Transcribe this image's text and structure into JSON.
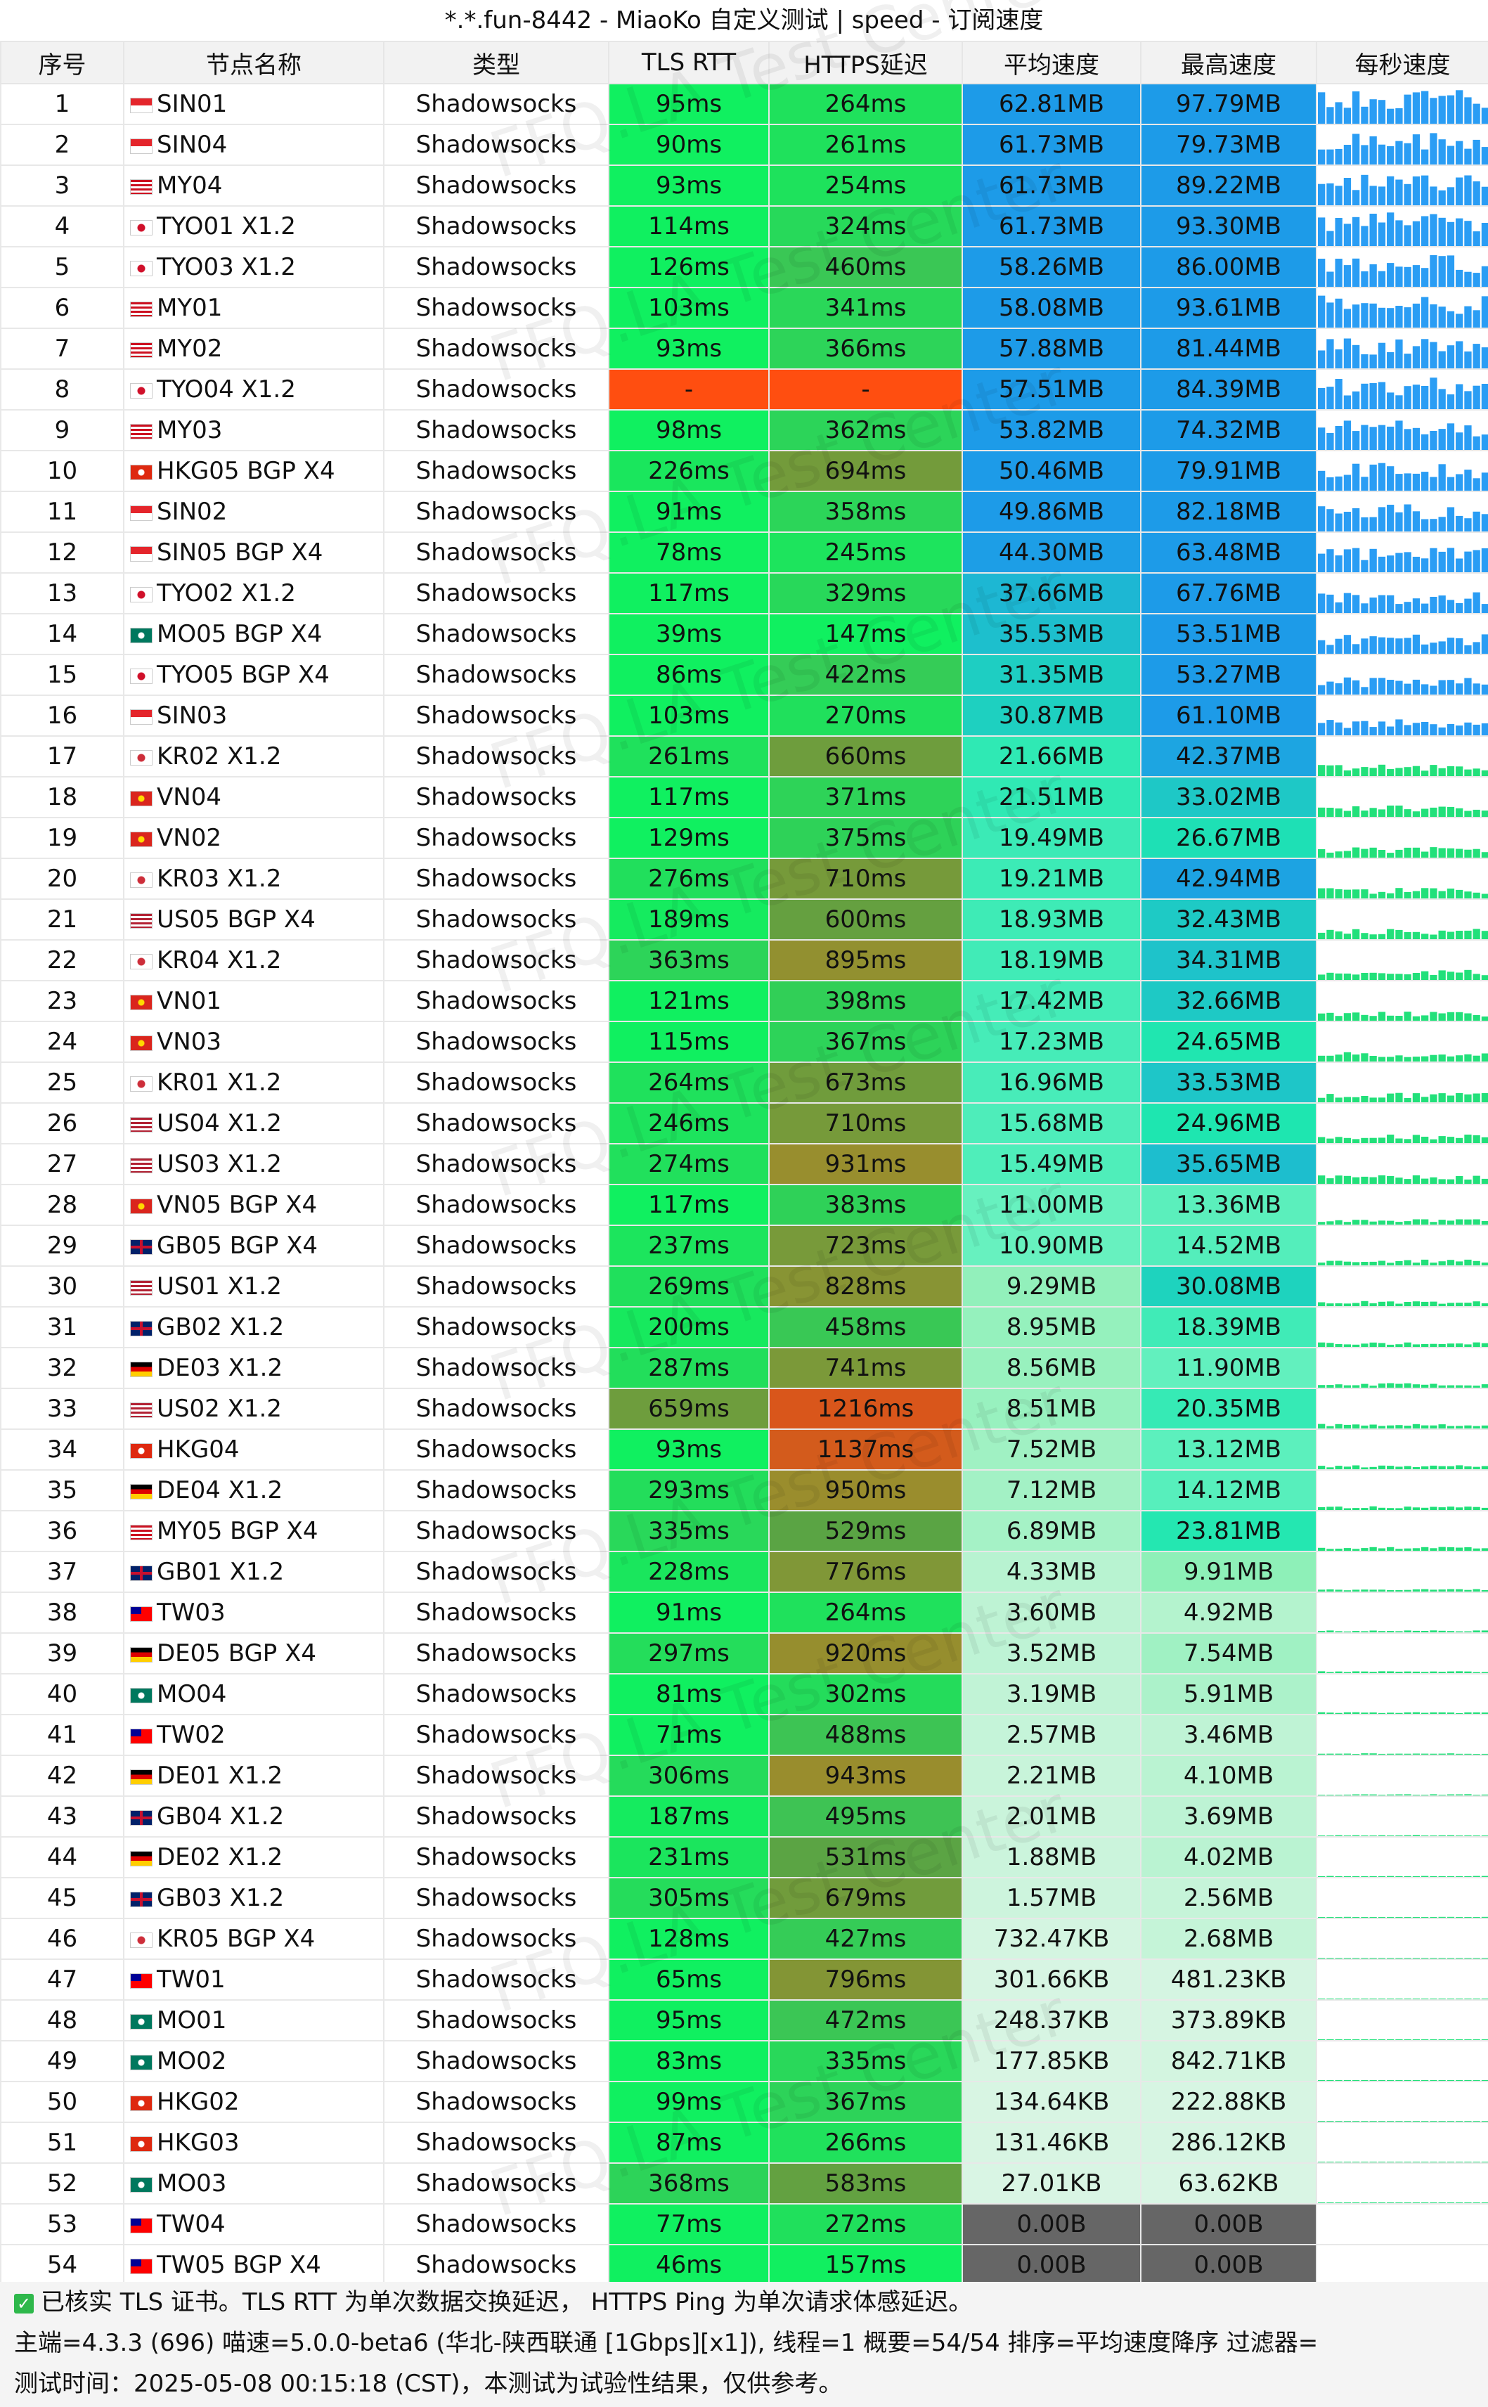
{
  "title": "*.*.fun-8442 - MiaoKo 自定义测试 | speed - 订阅速度",
  "headers": [
    "序号",
    "节点名称",
    "类型",
    "TLS RTT",
    "HTTPS延迟",
    "平均速度",
    "最高速度",
    "每秒速度"
  ],
  "watermark": "FFQ.LA Test Center",
  "rows": [
    {
      "idx": "1",
      "flag": "SG",
      "name": "SIN01",
      "type": "Shadowsocks",
      "tls": "95ms",
      "https": "264ms",
      "avg": "62.81MB",
      "max": "97.79MB"
    },
    {
      "idx": "2",
      "flag": "SG",
      "name": "SIN04",
      "type": "Shadowsocks",
      "tls": "90ms",
      "https": "261ms",
      "avg": "61.73MB",
      "max": "79.73MB"
    },
    {
      "idx": "3",
      "flag": "MY",
      "name": "MY04",
      "type": "Shadowsocks",
      "tls": "93ms",
      "https": "254ms",
      "avg": "61.73MB",
      "max": "89.22MB"
    },
    {
      "idx": "4",
      "flag": "JP",
      "name": "TYO01 X1.2",
      "type": "Shadowsocks",
      "tls": "114ms",
      "https": "324ms",
      "avg": "61.73MB",
      "max": "93.30MB"
    },
    {
      "idx": "5",
      "flag": "JP",
      "name": "TYO03 X1.2",
      "type": "Shadowsocks",
      "tls": "126ms",
      "https": "460ms",
      "avg": "58.26MB",
      "max": "86.00MB"
    },
    {
      "idx": "6",
      "flag": "MY",
      "name": "MY01",
      "type": "Shadowsocks",
      "tls": "103ms",
      "https": "341ms",
      "avg": "58.08MB",
      "max": "93.61MB"
    },
    {
      "idx": "7",
      "flag": "MY",
      "name": "MY02",
      "type": "Shadowsocks",
      "tls": "93ms",
      "https": "366ms",
      "avg": "57.88MB",
      "max": "81.44MB"
    },
    {
      "idx": "8",
      "flag": "JP",
      "name": "TYO04 X1.2",
      "type": "Shadowsocks",
      "tls": "-",
      "https": "-",
      "avg": "57.51MB",
      "max": "84.39MB"
    },
    {
      "idx": "9",
      "flag": "MY",
      "name": "MY03",
      "type": "Shadowsocks",
      "tls": "98ms",
      "https": "362ms",
      "avg": "53.82MB",
      "max": "74.32MB"
    },
    {
      "idx": "10",
      "flag": "HK",
      "name": "HKG05 BGP X4",
      "type": "Shadowsocks",
      "tls": "226ms",
      "https": "694ms",
      "avg": "50.46MB",
      "max": "79.91MB"
    },
    {
      "idx": "11",
      "flag": "SG",
      "name": "SIN02",
      "type": "Shadowsocks",
      "tls": "91ms",
      "https": "358ms",
      "avg": "49.86MB",
      "max": "82.18MB"
    },
    {
      "idx": "12",
      "flag": "SG",
      "name": "SIN05 BGP X4",
      "type": "Shadowsocks",
      "tls": "78ms",
      "https": "245ms",
      "avg": "44.30MB",
      "max": "63.48MB"
    },
    {
      "idx": "13",
      "flag": "JP",
      "name": "TYO02 X1.2",
      "type": "Shadowsocks",
      "tls": "117ms",
      "https": "329ms",
      "avg": "37.66MB",
      "max": "67.76MB"
    },
    {
      "idx": "14",
      "flag": "MO",
      "name": "MO05 BGP X4",
      "type": "Shadowsocks",
      "tls": "39ms",
      "https": "147ms",
      "avg": "35.53MB",
      "max": "53.51MB"
    },
    {
      "idx": "15",
      "flag": "JP",
      "name": "TYO05 BGP X4",
      "type": "Shadowsocks",
      "tls": "86ms",
      "https": "422ms",
      "avg": "31.35MB",
      "max": "53.27MB"
    },
    {
      "idx": "16",
      "flag": "SG",
      "name": "SIN03",
      "type": "Shadowsocks",
      "tls": "103ms",
      "https": "270ms",
      "avg": "30.87MB",
      "max": "61.10MB"
    },
    {
      "idx": "17",
      "flag": "KR",
      "name": "KR02 X1.2",
      "type": "Shadowsocks",
      "tls": "261ms",
      "https": "660ms",
      "avg": "21.66MB",
      "max": "42.37MB"
    },
    {
      "idx": "18",
      "flag": "VN",
      "name": "VN04",
      "type": "Shadowsocks",
      "tls": "117ms",
      "https": "371ms",
      "avg": "21.51MB",
      "max": "33.02MB"
    },
    {
      "idx": "19",
      "flag": "VN",
      "name": "VN02",
      "type": "Shadowsocks",
      "tls": "129ms",
      "https": "375ms",
      "avg": "19.49MB",
      "max": "26.67MB"
    },
    {
      "idx": "20",
      "flag": "KR",
      "name": "KR03 X1.2",
      "type": "Shadowsocks",
      "tls": "276ms",
      "https": "710ms",
      "avg": "19.21MB",
      "max": "42.94MB"
    },
    {
      "idx": "21",
      "flag": "US",
      "name": "US05 BGP X4",
      "type": "Shadowsocks",
      "tls": "189ms",
      "https": "600ms",
      "avg": "18.93MB",
      "max": "32.43MB"
    },
    {
      "idx": "22",
      "flag": "KR",
      "name": "KR04 X1.2",
      "type": "Shadowsocks",
      "tls": "363ms",
      "https": "895ms",
      "avg": "18.19MB",
      "max": "34.31MB"
    },
    {
      "idx": "23",
      "flag": "VN",
      "name": "VN01",
      "type": "Shadowsocks",
      "tls": "121ms",
      "https": "398ms",
      "avg": "17.42MB",
      "max": "32.66MB"
    },
    {
      "idx": "24",
      "flag": "VN",
      "name": "VN03",
      "type": "Shadowsocks",
      "tls": "115ms",
      "https": "367ms",
      "avg": "17.23MB",
      "max": "24.65MB"
    },
    {
      "idx": "25",
      "flag": "KR",
      "name": "KR01 X1.2",
      "type": "Shadowsocks",
      "tls": "264ms",
      "https": "673ms",
      "avg": "16.96MB",
      "max": "33.53MB"
    },
    {
      "idx": "26",
      "flag": "US",
      "name": "US04 X1.2",
      "type": "Shadowsocks",
      "tls": "246ms",
      "https": "710ms",
      "avg": "15.68MB",
      "max": "24.96MB"
    },
    {
      "idx": "27",
      "flag": "US",
      "name": "US03 X1.2",
      "type": "Shadowsocks",
      "tls": "274ms",
      "https": "931ms",
      "avg": "15.49MB",
      "max": "35.65MB"
    },
    {
      "idx": "28",
      "flag": "VN",
      "name": "VN05 BGP X4",
      "type": "Shadowsocks",
      "tls": "117ms",
      "https": "383ms",
      "avg": "11.00MB",
      "max": "13.36MB"
    },
    {
      "idx": "29",
      "flag": "GB",
      "name": "GB05 BGP X4",
      "type": "Shadowsocks",
      "tls": "237ms",
      "https": "723ms",
      "avg": "10.90MB",
      "max": "14.52MB"
    },
    {
      "idx": "30",
      "flag": "US",
      "name": "US01 X1.2",
      "type": "Shadowsocks",
      "tls": "269ms",
      "https": "828ms",
      "avg": "9.29MB",
      "max": "30.08MB"
    },
    {
      "idx": "31",
      "flag": "GB",
      "name": "GB02 X1.2",
      "type": "Shadowsocks",
      "tls": "200ms",
      "https": "458ms",
      "avg": "8.95MB",
      "max": "18.39MB"
    },
    {
      "idx": "32",
      "flag": "DE",
      "name": "DE03 X1.2",
      "type": "Shadowsocks",
      "tls": "287ms",
      "https": "741ms",
      "avg": "8.56MB",
      "max": "11.90MB"
    },
    {
      "idx": "33",
      "flag": "US",
      "name": "US02 X1.2",
      "type": "Shadowsocks",
      "tls": "659ms",
      "https": "1216ms",
      "avg": "8.51MB",
      "max": "20.35MB"
    },
    {
      "idx": "34",
      "flag": "HK",
      "name": "HKG04",
      "type": "Shadowsocks",
      "tls": "93ms",
      "https": "1137ms",
      "avg": "7.52MB",
      "max": "13.12MB"
    },
    {
      "idx": "35",
      "flag": "DE",
      "name": "DE04 X1.2",
      "type": "Shadowsocks",
      "tls": "293ms",
      "https": "950ms",
      "avg": "7.12MB",
      "max": "14.12MB"
    },
    {
      "idx": "36",
      "flag": "MY",
      "name": "MY05 BGP X4",
      "type": "Shadowsocks",
      "tls": "335ms",
      "https": "529ms",
      "avg": "6.89MB",
      "max": "23.81MB"
    },
    {
      "idx": "37",
      "flag": "GB",
      "name": "GB01 X1.2",
      "type": "Shadowsocks",
      "tls": "228ms",
      "https": "776ms",
      "avg": "4.33MB",
      "max": "9.91MB"
    },
    {
      "idx": "38",
      "flag": "TW",
      "name": "TW03",
      "type": "Shadowsocks",
      "tls": "91ms",
      "https": "264ms",
      "avg": "3.60MB",
      "max": "4.92MB"
    },
    {
      "idx": "39",
      "flag": "DE",
      "name": "DE05 BGP X4",
      "type": "Shadowsocks",
      "tls": "297ms",
      "https": "920ms",
      "avg": "3.52MB",
      "max": "7.54MB"
    },
    {
      "idx": "40",
      "flag": "MO",
      "name": "MO04",
      "type": "Shadowsocks",
      "tls": "81ms",
      "https": "302ms",
      "avg": "3.19MB",
      "max": "5.91MB"
    },
    {
      "idx": "41",
      "flag": "TW",
      "name": "TW02",
      "type": "Shadowsocks",
      "tls": "71ms",
      "https": "488ms",
      "avg": "2.57MB",
      "max": "3.46MB"
    },
    {
      "idx": "42",
      "flag": "DE",
      "name": "DE01 X1.2",
      "type": "Shadowsocks",
      "tls": "306ms",
      "https": "943ms",
      "avg": "2.21MB",
      "max": "4.10MB"
    },
    {
      "idx": "43",
      "flag": "GB",
      "name": "GB04 X1.2",
      "type": "Shadowsocks",
      "tls": "187ms",
      "https": "495ms",
      "avg": "2.01MB",
      "max": "3.69MB"
    },
    {
      "idx": "44",
      "flag": "DE",
      "name": "DE02 X1.2",
      "type": "Shadowsocks",
      "tls": "231ms",
      "https": "531ms",
      "avg": "1.88MB",
      "max": "4.02MB"
    },
    {
      "idx": "45",
      "flag": "GB",
      "name": "GB03 X1.2",
      "type": "Shadowsocks",
      "tls": "305ms",
      "https": "679ms",
      "avg": "1.57MB",
      "max": "2.56MB"
    },
    {
      "idx": "46",
      "flag": "KR",
      "name": "KR05 BGP X4",
      "type": "Shadowsocks",
      "tls": "128ms",
      "https": "427ms",
      "avg": "732.47KB",
      "max": "2.68MB"
    },
    {
      "idx": "47",
      "flag": "TW",
      "name": "TW01",
      "type": "Shadowsocks",
      "tls": "65ms",
      "https": "796ms",
      "avg": "301.66KB",
      "max": "481.23KB"
    },
    {
      "idx": "48",
      "flag": "MO",
      "name": "MO01",
      "type": "Shadowsocks",
      "tls": "95ms",
      "https": "472ms",
      "avg": "248.37KB",
      "max": "373.89KB"
    },
    {
      "idx": "49",
      "flag": "MO",
      "name": "MO02",
      "type": "Shadowsocks",
      "tls": "83ms",
      "https": "335ms",
      "avg": "177.85KB",
      "max": "842.71KB"
    },
    {
      "idx": "50",
      "flag": "HK",
      "name": "HKG02",
      "type": "Shadowsocks",
      "tls": "99ms",
      "https": "367ms",
      "avg": "134.64KB",
      "max": "222.88KB"
    },
    {
      "idx": "51",
      "flag": "HK",
      "name": "HKG03",
      "type": "Shadowsocks",
      "tls": "87ms",
      "https": "266ms",
      "avg": "131.46KB",
      "max": "286.12KB"
    },
    {
      "idx": "52",
      "flag": "MO",
      "name": "MO03",
      "type": "Shadowsocks",
      "tls": "368ms",
      "https": "583ms",
      "avg": "27.01KB",
      "max": "63.62KB"
    },
    {
      "idx": "53",
      "flag": "TW",
      "name": "TW04",
      "type": "Shadowsocks",
      "tls": "77ms",
      "https": "272ms",
      "avg": "0.00B",
      "max": "0.00B"
    },
    {
      "idx": "54",
      "flag": "TW",
      "name": "TW05 BGP X4",
      "type": "Shadowsocks",
      "tls": "46ms",
      "https": "157ms",
      "avg": "0.00B",
      "max": "0.00B"
    }
  ],
  "footer": {
    "line1": "已核实 TLS 证书。TLS RTT 为单次数据交换延迟， HTTPS Ping 为单次请求体感延迟。",
    "line2": "主端=4.3.3 (696) 喵速=5.0.0-beta6 (华北-陕西联通 [1Gbps][x1]), 线程=1 概要=54/54 排序=平均速度降序 过滤器=",
    "line3": "测试时间：2025-05-08 00:15:18 (CST)，本测试为试验性结果，仅供参考。"
  },
  "colors": {
    "fast_speed": "#1d9be8",
    "mid_speed": "#1ee6b0",
    "slow_speed": "#d9f5e4",
    "zero_speed": "#666666",
    "latency_good": "#20e55c",
    "latency_bad": "#ff4e10",
    "spark_blue": "#2a9df4",
    "spark_green": "#22e07a",
    "check_green": "#2eb84b"
  }
}
